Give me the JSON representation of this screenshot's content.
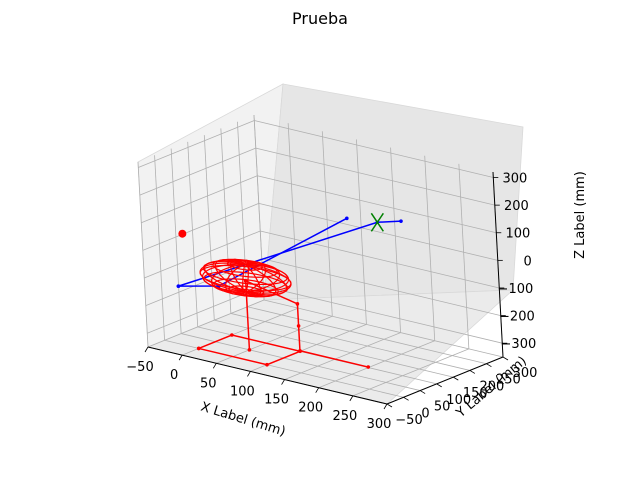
{
  "chart_data": {
    "type": "scatter",
    "projection": "3d",
    "title": "Prueba",
    "xlabel": "X Label (mm)",
    "ylabel": "Y Label (mm)",
    "zlabel": "Z Label (mm)",
    "xlim": [
      -50,
      300
    ],
    "ylim": [
      -50,
      300
    ],
    "zlim": [
      -350,
      320
    ],
    "xticks": [
      "−50",
      "0",
      "50",
      "100",
      "150",
      "200",
      "250",
      "300"
    ],
    "yticks": [
      "−50",
      "0",
      "50",
      "100",
      "150",
      "200",
      "250",
      "300"
    ],
    "zticks": [
      "−300",
      "−200",
      "−100",
      "0",
      "100",
      "200",
      "300"
    ],
    "grid": true,
    "pane_colors": {
      "x": "#f2f2f2",
      "y": "#e6e6e6",
      "z": "#ebebeb"
    },
    "series": [
      {
        "color": "#ff0000",
        "kind": "line",
        "points": [
          [
            0,
            0,
            -350
          ],
          [
            100,
            0,
            -350
          ],
          [
            100,
            100,
            -350
          ],
          [
            0,
            100,
            -350
          ],
          [
            0,
            0,
            -350
          ]
        ]
      },
      {
        "color": "#ff0000",
        "kind": "line",
        "points": [
          [
            50,
            50,
            -350
          ],
          [
            50,
            50,
            -100
          ],
          [
            150,
            0,
            -100
          ],
          [
            150,
            0,
            -180
          ],
          [
            150,
            0,
            -270
          ],
          [
            250,
            0,
            -270
          ]
        ]
      },
      {
        "color": "#0000ff",
        "kind": "line",
        "points": [
          [
            0,
            -50,
            -100
          ],
          [
            250,
            50,
            230
          ],
          [
            250,
            120,
            200
          ]
        ]
      },
      {
        "color": "#0000ff",
        "kind": "line",
        "points": [
          [
            0,
            -50,
            -100
          ],
          [
            50,
            -30,
            -80
          ],
          [
            200,
            60,
            210
          ]
        ]
      },
      {
        "color": "#ff0000",
        "kind": "marker",
        "points": [
          [
            0,
            -30,
            80
          ]
        ]
      },
      {
        "color": "#ff0000",
        "kind": "wireframe-ellipsoid",
        "center": [
          50,
          50,
          -90
        ],
        "radii": [
          60,
          60,
          50
        ]
      },
      {
        "color": "#008000",
        "kind": "marker-x",
        "points": [
          [
            250,
            50,
            230
          ]
        ]
      }
    ]
  }
}
